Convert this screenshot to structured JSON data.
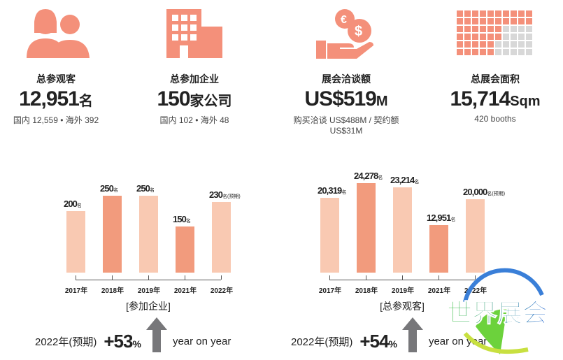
{
  "stats": [
    {
      "icon": "visitors-icon",
      "label": "总参观客",
      "value": "12,951",
      "unit": "名",
      "sub": "国内 12,559 • 海外 392"
    },
    {
      "icon": "building-icon",
      "label": "总参加企业",
      "value": "150",
      "unit": "家公司",
      "sub": "国内 102 • 海外 48"
    },
    {
      "icon": "money-hand-icon",
      "label": "展会洽谈额",
      "value": "US$519",
      "unit": "M",
      "sub": "购买洽谈 US$488M / 契约额 US$31M"
    },
    {
      "icon": "area-grid-icon",
      "label": "总展会面积",
      "value": "15,714",
      "unit": "Sqm",
      "sub": "420 booths"
    }
  ],
  "colors": {
    "icon": "#f4907a",
    "light": "#f9c9b2",
    "dark": "#f29b7d",
    "arrow": "#77777a"
  },
  "chart_data": [
    {
      "type": "bar",
      "title": "[参加企业]",
      "categories": [
        "2017年",
        "2018年",
        "2019年",
        "2021年",
        "2022年"
      ],
      "values": [
        200,
        250,
        250,
        150,
        230
      ],
      "value_labels": [
        "200",
        "250",
        "250",
        "150",
        "230"
      ],
      "unit": "名",
      "notes": [
        "",
        "",
        "",
        "",
        "(预期)"
      ],
      "highlight": [
        false,
        true,
        false,
        true,
        false
      ],
      "ylim": [
        0,
        250
      ]
    },
    {
      "type": "bar",
      "title": "[总参观客]",
      "categories": [
        "2017年",
        "2018年",
        "2019年",
        "2021年",
        "2022年"
      ],
      "values": [
        20319,
        24278,
        23214,
        12951,
        20000
      ],
      "value_labels": [
        "20,319",
        "24,278",
        "23,214",
        "12,951",
        "20,000"
      ],
      "unit": "名",
      "notes": [
        "",
        "",
        "",
        "",
        "(预期)"
      ],
      "highlight": [
        false,
        true,
        false,
        true,
        false
      ],
      "ylim": [
        0,
        24278
      ]
    }
  ],
  "yoy": [
    {
      "prefix": "2022年(预期)",
      "pct": "+53",
      "sign": "%",
      "text": "year on year"
    },
    {
      "prefix": "2022年(预期)",
      "pct": "+54",
      "sign": "%",
      "text": "year on year"
    }
  ],
  "watermark": "世界展会"
}
